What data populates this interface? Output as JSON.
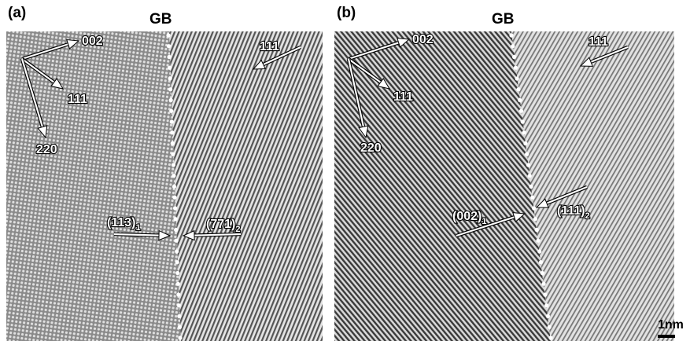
{
  "panels": [
    {
      "label": "(a)",
      "title": "GB",
      "annotations": [
        "002",
        "111",
        "220",
        "111"
      ],
      "grain_labels": [
        {
          "text": "(113)",
          "sub": "1"
        },
        {
          "text": "(771)",
          "sub": "2"
        }
      ]
    },
    {
      "label": "(b)",
      "title": "GB",
      "annotations": [
        "002",
        "111",
        "220",
        "111"
      ],
      "grain_labels": [
        {
          "text": "(002)",
          "sub": "1"
        },
        {
          "text": "(111)",
          "sub": "2"
        }
      ]
    }
  ],
  "scale_bar": "1nm"
}
